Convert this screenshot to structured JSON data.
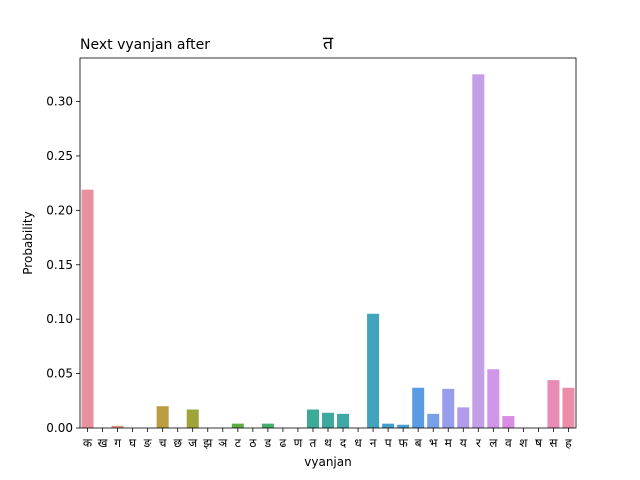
{
  "chart_data": {
    "type": "bar",
    "title": "Next vyanjan after",
    "title_char": "त",
    "xlabel": "vyanjan",
    "ylabel": "Probability",
    "ylim": [
      0,
      0.34
    ],
    "yticks": [
      "0.00",
      "0.05",
      "0.10",
      "0.15",
      "0.20",
      "0.25",
      "0.30"
    ],
    "categories": [
      "क",
      "ख",
      "ग",
      "घ",
      "ङ",
      "च",
      "छ",
      "ज",
      "झ",
      "ञ",
      "ट",
      "ठ",
      "ड",
      "ढ",
      "ण",
      "त",
      "थ",
      "द",
      "ध",
      "न",
      "प",
      "फ",
      "ब",
      "भ",
      "म",
      "य",
      "र",
      "ल",
      "व",
      "श",
      "ष",
      "स",
      "ह"
    ],
    "values": [
      0.219,
      0.0,
      0.002,
      0.0,
      0.0,
      0.02,
      0.0,
      0.017,
      0.0,
      0.0,
      0.004,
      0.0,
      0.004,
      0.0,
      0.0,
      0.017,
      0.014,
      0.013,
      0.0,
      0.105,
      0.004,
      0.003,
      0.037,
      0.013,
      0.036,
      0.019,
      0.325,
      0.054,
      0.011,
      0.0,
      0.0,
      0.044,
      0.037
    ],
    "colors": [
      "#e8909d",
      "#e8949f",
      "#e29681",
      "#d89e6e",
      "#c99f53",
      "#b89e3e",
      "#aba23b",
      "#9ea43a",
      "#8fa63c",
      "#7daa3c",
      "#5fac43",
      "#51ad56",
      "#46ae6b",
      "#40ac7c",
      "#3eab8a",
      "#3daa95",
      "#3ea99f",
      "#40a7a8",
      "#3fa5b2",
      "#41a3bc",
      "#44a0c9",
      "#4a9dd3",
      "#5a9be3",
      "#799fe8",
      "#979deb",
      "#b29bec",
      "#c59ee8",
      "#d196ea",
      "#da8ce5",
      "#e68ad5",
      "#ea8bc4",
      "#e98cb5",
      "#ea8ea7"
    ]
  }
}
